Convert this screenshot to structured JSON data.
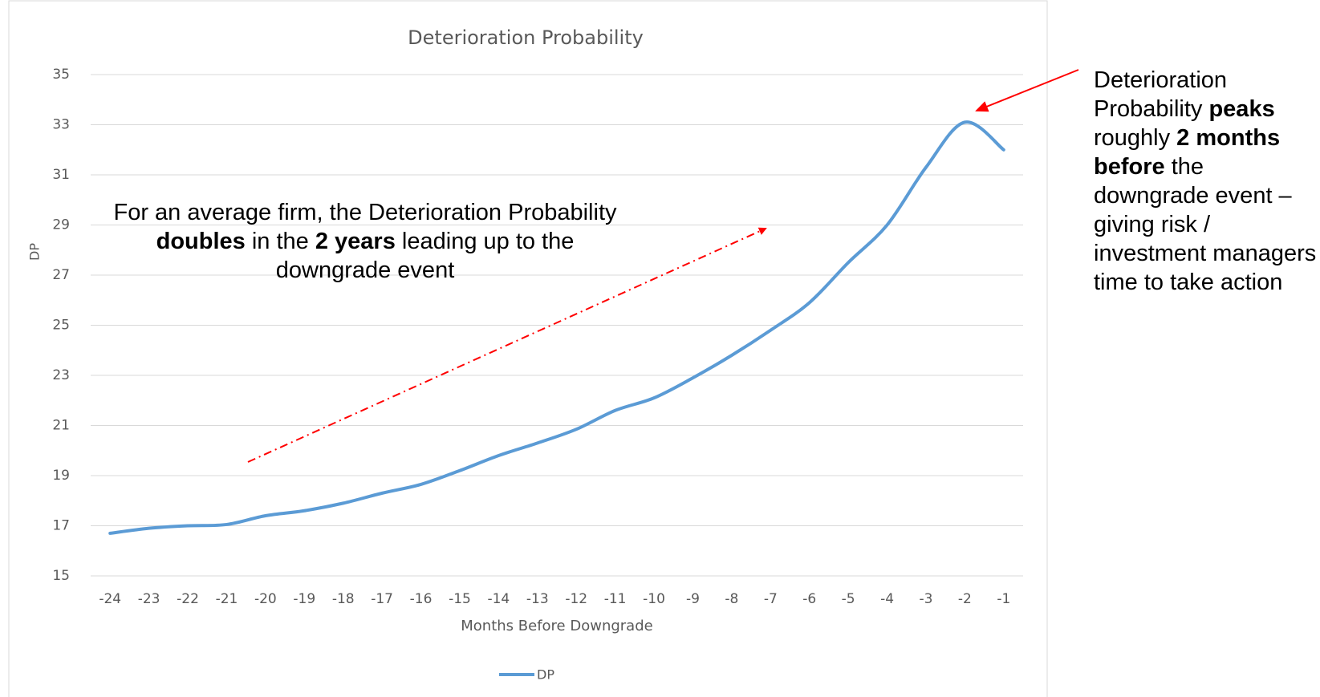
{
  "chart_data": {
    "type": "line",
    "title": "Deterioration Probability",
    "x_label": "Months Before Downgrade",
    "y_label": "DP",
    "categories": [
      -24,
      -23,
      -22,
      -21,
      -20,
      -19,
      -18,
      -17,
      -16,
      -15,
      -14,
      -13,
      -12,
      -11,
      -10,
      -9,
      -8,
      -7,
      -6,
      -5,
      -4,
      -3,
      -2,
      -1
    ],
    "series": [
      {
        "name": "DP",
        "color": "#5b9bd5",
        "values": [
          16.7,
          16.9,
          17.0,
          17.05,
          17.4,
          17.6,
          17.9,
          18.3,
          18.65,
          19.2,
          19.8,
          20.3,
          20.85,
          21.6,
          22.1,
          22.9,
          23.8,
          24.8,
          25.9,
          27.5,
          29.0,
          31.3,
          33.1,
          32.0
        ]
      }
    ],
    "ylim": [
      15,
      35
    ],
    "yticks": [
      15,
      17,
      19,
      21,
      23,
      25,
      27,
      29,
      31,
      33,
      35
    ],
    "grid": true,
    "legend": "bottom",
    "annotations": [
      [
        {
          "text": "For an average firm, the Deterioration Probability "
        },
        {
          "text": "doubles",
          "bold": true
        },
        {
          "text": " in the "
        },
        {
          "text": "2 years",
          "bold": true
        },
        {
          "text": " leading up to the downgrade event"
        }
      ],
      [
        {
          "text": "Deterioration Probability "
        },
        {
          "text": "peaks",
          "bold": true
        },
        {
          "text": " roughly "
        },
        {
          "text": "2 months before",
          "bold": true
        },
        {
          "text": " the downgrade event – giving risk / investment managers time to take action"
        }
      ]
    ]
  }
}
